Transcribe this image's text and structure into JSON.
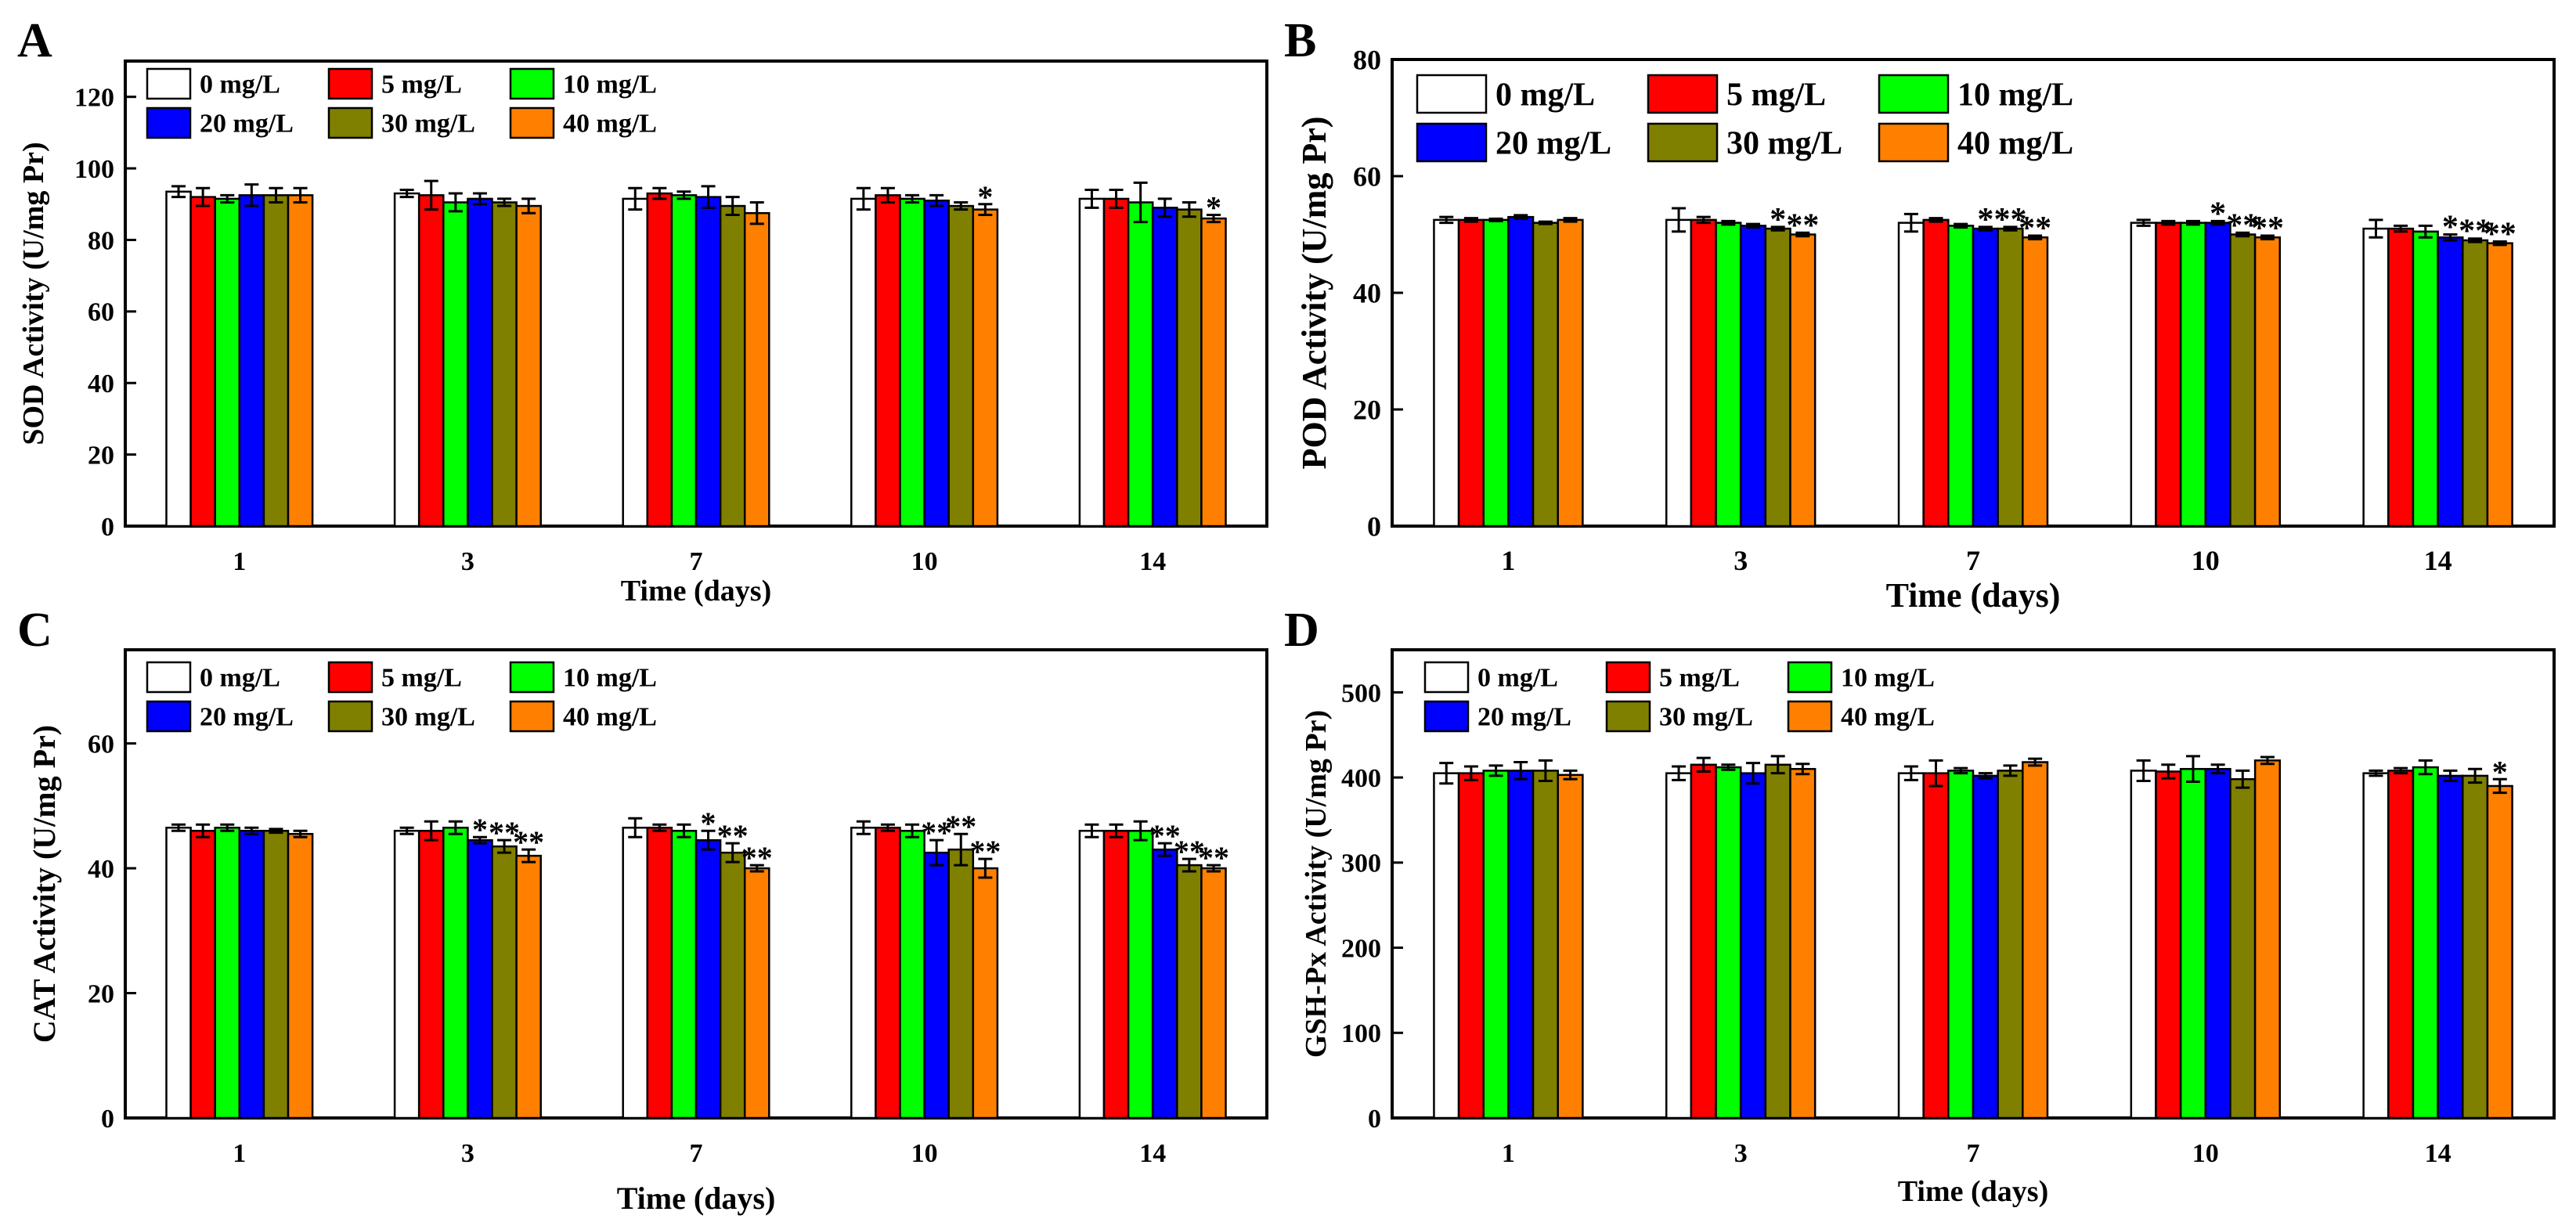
{
  "colors": {
    "0 mg/L": "#ffffff",
    "5 mg/L": "#ff0000",
    "10 mg/L": "#00ff00",
    "20 mg/L": "#0000ff",
    "30 mg/L": "#808000",
    "40 mg/L": "#ff8000"
  },
  "chart_data": [
    {
      "type": "bar",
      "panel_label": "A",
      "title": "",
      "xlabel": "Time (days)",
      "ylabel": "SOD Activity  (U/mg Pr)",
      "categories": [
        "1",
        "3",
        "7",
        "10",
        "14"
      ],
      "ylim": [
        0,
        130
      ],
      "yticks": [
        "0",
        "20",
        "40",
        "60",
        "80",
        "100",
        "120"
      ],
      "series": [
        {
          "name": "0  mg/L",
          "values": [
            93.5,
            93,
            91.5,
            91.5,
            91.5
          ],
          "errors": [
            1.5,
            1,
            3,
            3,
            2.5
          ]
        },
        {
          "name": "5  mg/L",
          "values": [
            92,
            92.5,
            93,
            92.5,
            91.5
          ],
          "errors": [
            2.5,
            4,
            1.5,
            2,
            2.5
          ]
        },
        {
          "name": "10 mg/L",
          "values": [
            91.5,
            90.5,
            92.5,
            91.5,
            90.5
          ],
          "errors": [
            1,
            2.5,
            1,
            1,
            5.5
          ]
        },
        {
          "name": "20 mg/L",
          "values": [
            92.5,
            91.5,
            92,
            91,
            89
          ],
          "errors": [
            3,
            1.5,
            3,
            1.5,
            2.5
          ]
        },
        {
          "name": "30 mg/L",
          "values": [
            92.5,
            90.5,
            89.5,
            89.5,
            88.5
          ],
          "errors": [
            2,
            1,
            2.5,
            1,
            2
          ]
        },
        {
          "name": "40 mg/L",
          "values": [
            92.5,
            89.5,
            87.5,
            88.5,
            86
          ],
          "errors": [
            2,
            2,
            3,
            1.5,
            1
          ]
        }
      ],
      "annotations": [
        {
          "category": "10",
          "series": "40 mg/L",
          "text": "*"
        },
        {
          "category": "14",
          "series": "40 mg/L",
          "text": "*"
        }
      ]
    },
    {
      "type": "bar",
      "panel_label": "B",
      "title": "",
      "xlabel": "Time (days)",
      "ylabel": "POD Activity (U/mg Pr)",
      "categories": [
        "1",
        "3",
        "7",
        "10",
        "14"
      ],
      "ylim": [
        0,
        80
      ],
      "yticks": [
        "0",
        "20",
        "40",
        "60",
        "80"
      ],
      "series": [
        {
          "name": "0  mg/L",
          "values": [
            52.5,
            52.5,
            52,
            52,
            51
          ],
          "errors": [
            0.5,
            2,
            1.5,
            0.5,
            1.5
          ]
        },
        {
          "name": "5  mg/L",
          "values": [
            52.5,
            52.5,
            52.5,
            52,
            51
          ],
          "errors": [
            0.3,
            0.5,
            0.3,
            0.3,
            0.5
          ]
        },
        {
          "name": "10 mg/L",
          "values": [
            52.5,
            52,
            51.5,
            52,
            50.5
          ],
          "errors": [
            0.2,
            0.3,
            0.3,
            0.3,
            1
          ]
        },
        {
          "name": "20 mg/L",
          "values": [
            53,
            51.5,
            51,
            52,
            49.5
          ],
          "errors": [
            0.3,
            0.3,
            0.3,
            0.3,
            0.5
          ]
        },
        {
          "name": "30 mg/L",
          "values": [
            52,
            51,
            51,
            50,
            49
          ],
          "errors": [
            0.2,
            0.3,
            0.3,
            0.3,
            0.3
          ]
        },
        {
          "name": "40 mg/L",
          "values": [
            52.5,
            50,
            49.5,
            49.5,
            48.5
          ],
          "errors": [
            0.3,
            0.3,
            0.3,
            0.3,
            0.3
          ]
        }
      ],
      "annotations": [
        {
          "category": "3",
          "series": "30 mg/L",
          "text": "*"
        },
        {
          "category": "3",
          "series": "40 mg/L",
          "text": "**"
        },
        {
          "category": "7",
          "series": "20 mg/L",
          "text": "*"
        },
        {
          "category": "7",
          "series": "30 mg/L",
          "text": "**"
        },
        {
          "category": "7",
          "series": "40 mg/L",
          "text": "**"
        },
        {
          "category": "10",
          "series": "20 mg/L",
          "text": "*"
        },
        {
          "category": "10",
          "series": "30 mg/L",
          "text": "**"
        },
        {
          "category": "10",
          "series": "40 mg/L",
          "text": "**"
        },
        {
          "category": "14",
          "series": "20 mg/L",
          "text": "*"
        },
        {
          "category": "14",
          "series": "30 mg/L",
          "text": "**"
        },
        {
          "category": "14",
          "series": "40 mg/L",
          "text": "**"
        }
      ]
    },
    {
      "type": "bar",
      "panel_label": "C",
      "title": "",
      "xlabel": "Time (days)",
      "ylabel": "CAT Activity  (U/mg Pr)",
      "categories": [
        "1",
        "3",
        "7",
        "10",
        "14"
      ],
      "ylim": [
        0,
        75
      ],
      "yticks": [
        "0",
        "20",
        "40",
        "60"
      ],
      "series": [
        {
          "name": "0  mg/L",
          "values": [
            46.5,
            46,
            46.5,
            46.5,
            46
          ],
          "errors": [
            0.5,
            0.5,
            1.5,
            1,
            1
          ]
        },
        {
          "name": "5  mg/L",
          "values": [
            46,
            46,
            46.5,
            46.5,
            46
          ],
          "errors": [
            1,
            1.5,
            0.5,
            0.5,
            1
          ]
        },
        {
          "name": "10 mg/L",
          "values": [
            46.5,
            46.5,
            46,
            46,
            46
          ],
          "errors": [
            0.5,
            1,
            1,
            1,
            1.5
          ]
        },
        {
          "name": "20 mg/L",
          "values": [
            46,
            44.5,
            44.5,
            42.5,
            43
          ],
          "errors": [
            0.5,
            0.5,
            1.5,
            2,
            1
          ]
        },
        {
          "name": "30 mg/L",
          "values": [
            46,
            43.5,
            42.5,
            43,
            40.5
          ],
          "errors": [
            0.3,
            1,
            1.5,
            2.5,
            1
          ]
        },
        {
          "name": "40 mg/L",
          "values": [
            45.5,
            42,
            40,
            40,
            40
          ],
          "errors": [
            0.5,
            1,
            0.5,
            1.5,
            0.5
          ]
        }
      ],
      "annotations": [
        {
          "category": "3",
          "series": "20 mg/L",
          "text": "*"
        },
        {
          "category": "3",
          "series": "30 mg/L",
          "text": "**"
        },
        {
          "category": "3",
          "series": "40 mg/L",
          "text": "**"
        },
        {
          "category": "7",
          "series": "20 mg/L",
          "text": "*"
        },
        {
          "category": "7",
          "series": "30 mg/L",
          "text": "**"
        },
        {
          "category": "7",
          "series": "40 mg/L",
          "text": "**"
        },
        {
          "category": "10",
          "series": "20 mg/L",
          "text": "**"
        },
        {
          "category": "10",
          "series": "30 mg/L",
          "text": "**"
        },
        {
          "category": "10",
          "series": "40 mg/L",
          "text": "**"
        },
        {
          "category": "14",
          "series": "20 mg/L",
          "text": "**"
        },
        {
          "category": "14",
          "series": "30 mg/L",
          "text": "**"
        },
        {
          "category": "14",
          "series": "40 mg/L",
          "text": "**"
        }
      ]
    },
    {
      "type": "bar",
      "panel_label": "D",
      "title": "",
      "xlabel": "Time (days)",
      "ylabel": "GSH-Px Activity  (U/mg Pr)",
      "categories": [
        "1",
        "3",
        "7",
        "10",
        "14"
      ],
      "ylim": [
        0,
        550
      ],
      "yticks": [
        "0",
        "100",
        "200",
        "300",
        "400",
        "500"
      ],
      "series": [
        {
          "name": "0  mg/L",
          "values": [
            405,
            405,
            405,
            408,
            405
          ],
          "errors": [
            12,
            8,
            8,
            12,
            3
          ]
        },
        {
          "name": "5  mg/L",
          "values": [
            405,
            415,
            405,
            407,
            408
          ],
          "errors": [
            8,
            8,
            15,
            8,
            3
          ]
        },
        {
          "name": "10 mg/L",
          "values": [
            408,
            412,
            408,
            410,
            412
          ],
          "errors": [
            6,
            3,
            3,
            15,
            8
          ]
        },
        {
          "name": "20 mg/L",
          "values": [
            408,
            405,
            402,
            410,
            402
          ],
          "errors": [
            10,
            12,
            3,
            5,
            6
          ]
        },
        {
          "name": "30 mg/L",
          "values": [
            408,
            415,
            408,
            398,
            402
          ],
          "errors": [
            12,
            10,
            6,
            10,
            8
          ]
        },
        {
          "name": "40 mg/L",
          "values": [
            403,
            410,
            418,
            420,
            390
          ],
          "errors": [
            5,
            6,
            4,
            4,
            8
          ]
        }
      ],
      "annotations": [
        {
          "category": "14",
          "series": "40 mg/L",
          "text": "*"
        }
      ]
    }
  ]
}
